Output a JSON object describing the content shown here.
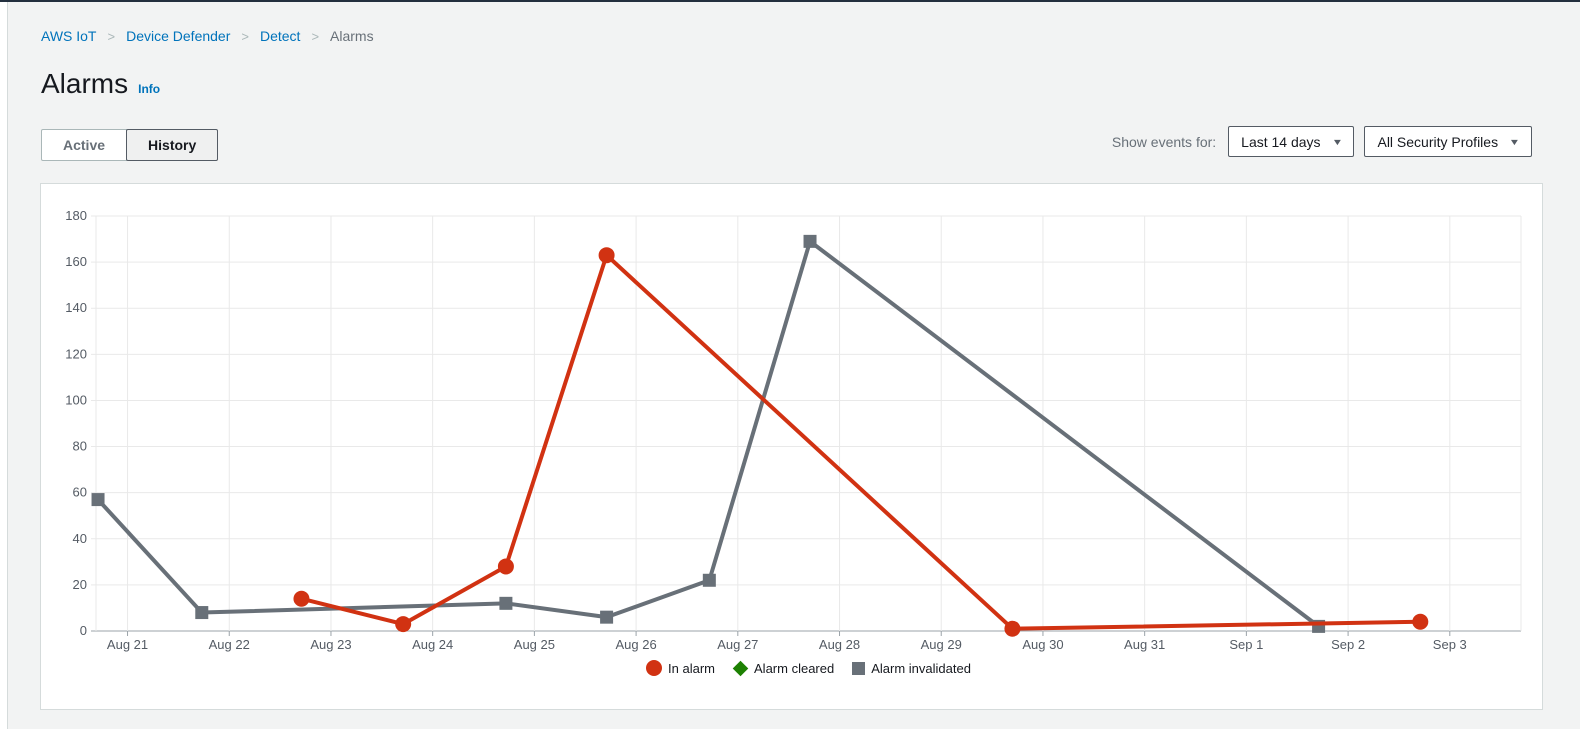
{
  "colors": {
    "page_bg": "#f2f3f3",
    "link_blue": "#0073bb",
    "alarm_red": "#d13212",
    "cleared_green": "#1d8102",
    "invalidated_gray": "#687078"
  },
  "breadcrumb": {
    "separator": ">",
    "items": [
      {
        "label": "AWS IoT"
      },
      {
        "label": "Device Defender"
      },
      {
        "label": "Detect"
      },
      {
        "label": "Alarms"
      }
    ]
  },
  "header": {
    "title": "Alarms",
    "info_label": "Info"
  },
  "toolbar": {
    "tabs": [
      {
        "label": "Active",
        "selected": false
      },
      {
        "label": "History",
        "selected": true
      }
    ],
    "show_events_label": "Show events for:",
    "time_range_value": "Last 14 days",
    "profile_filter_value": "All Security Profiles",
    "caret_icon": "▼"
  },
  "chart_data": {
    "type": "line",
    "title": "",
    "xlabel": "",
    "ylabel": "",
    "grid": true,
    "legend_position": "bottom",
    "ylim": [
      0,
      180
    ],
    "y_ticks": [
      0,
      20,
      40,
      60,
      80,
      100,
      120,
      140,
      160,
      180
    ],
    "x_tick_labels": [
      "Aug 21",
      "Aug 22",
      "Aug 23",
      "Aug 24",
      "Aug 25",
      "Aug 26",
      "Aug 27",
      "Aug 28",
      "Aug 29",
      "Aug 30",
      "Aug 31",
      "Sep 1",
      "Sep 2",
      "Sep 3"
    ],
    "x_domain_days_from_aug21": [
      -0.31,
      13.7
    ],
    "series": [
      {
        "name": "In alarm",
        "color": "#d13212",
        "marker": "circle",
        "points": [
          {
            "x": 1.71,
            "y": 14
          },
          {
            "x": 2.71,
            "y": 3
          },
          {
            "x": 3.72,
            "y": 28
          },
          {
            "x": 4.71,
            "y": 163
          },
          {
            "x": 8.7,
            "y": 1
          },
          {
            "x": 12.71,
            "y": 4
          }
        ]
      },
      {
        "name": "Alarm cleared",
        "color": "#1d8102",
        "marker": "diamond",
        "points": []
      },
      {
        "name": "Alarm invalidated",
        "color": "#687078",
        "marker": "square",
        "points": [
          {
            "x": -0.29,
            "y": 57
          },
          {
            "x": 0.73,
            "y": 8
          },
          {
            "x": 3.72,
            "y": 12
          },
          {
            "x": 4.71,
            "y": 6
          },
          {
            "x": 5.72,
            "y": 22
          },
          {
            "x": 6.71,
            "y": 169
          },
          {
            "x": 11.71,
            "y": 2
          }
        ]
      }
    ]
  }
}
